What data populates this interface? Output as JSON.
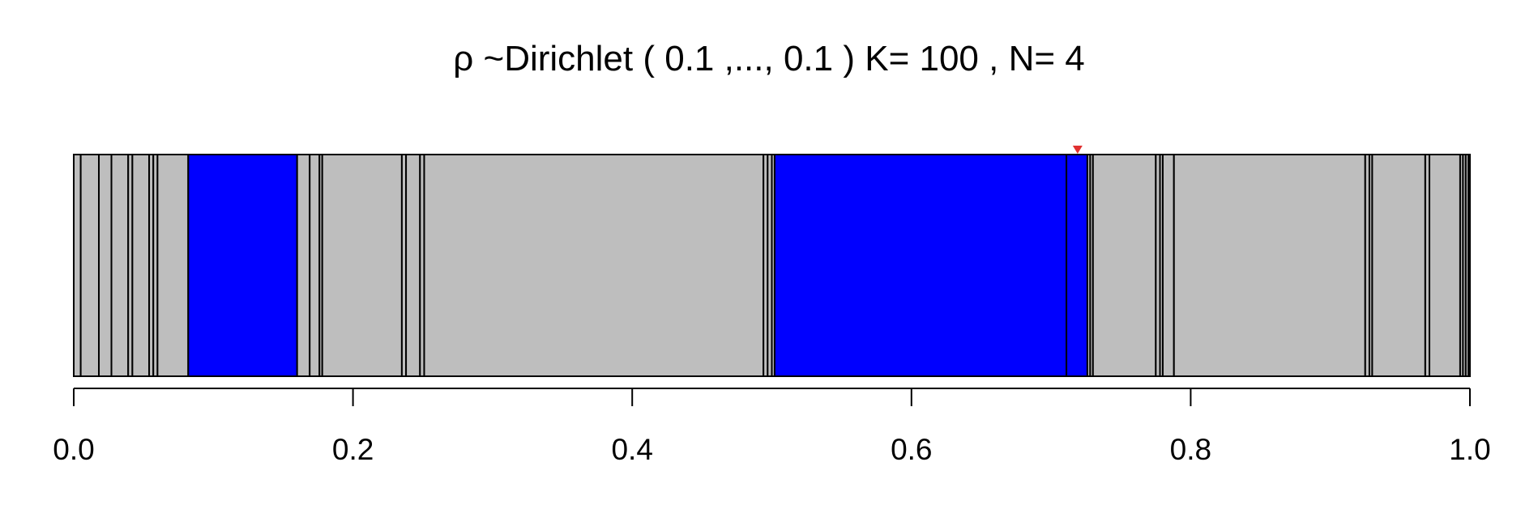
{
  "chart_data": {
    "type": "bar",
    "title": "ρ ~Dirichlet ( 0.1 ,..., 0.1 ) K= 100 , N= 4",
    "xlabel": "",
    "ylabel": "",
    "xlim": [
      0,
      1
    ],
    "ticks": [
      {
        "value": 0.0,
        "label": "0.0"
      },
      {
        "value": 0.2,
        "label": "0.2"
      },
      {
        "value": 0.4,
        "label": "0.4"
      },
      {
        "value": 0.6,
        "label": "0.6"
      },
      {
        "value": 0.8,
        "label": "0.8"
      },
      {
        "value": 1.0,
        "label": "1.0"
      }
    ],
    "colors": {
      "unselected": "#bebebe",
      "selected": "#0000ff",
      "border": "#000000",
      "marker": "#e03030"
    },
    "segments": [
      {
        "start": 0.0,
        "end": 0.005,
        "selected": false
      },
      {
        "start": 0.005,
        "end": 0.018,
        "selected": false
      },
      {
        "start": 0.018,
        "end": 0.027,
        "selected": false
      },
      {
        "start": 0.027,
        "end": 0.039,
        "selected": false
      },
      {
        "start": 0.039,
        "end": 0.042,
        "selected": false
      },
      {
        "start": 0.042,
        "end": 0.054,
        "selected": false
      },
      {
        "start": 0.054,
        "end": 0.057,
        "selected": false
      },
      {
        "start": 0.057,
        "end": 0.06,
        "selected": false
      },
      {
        "start": 0.06,
        "end": 0.082,
        "selected": false
      },
      {
        "start": 0.082,
        "end": 0.16,
        "selected": true
      },
      {
        "start": 0.16,
        "end": 0.169,
        "selected": false
      },
      {
        "start": 0.169,
        "end": 0.176,
        "selected": false
      },
      {
        "start": 0.176,
        "end": 0.178,
        "selected": false
      },
      {
        "start": 0.178,
        "end": 0.235,
        "selected": false
      },
      {
        "start": 0.235,
        "end": 0.238,
        "selected": false
      },
      {
        "start": 0.238,
        "end": 0.248,
        "selected": false
      },
      {
        "start": 0.248,
        "end": 0.251,
        "selected": false
      },
      {
        "start": 0.251,
        "end": 0.494,
        "selected": false
      },
      {
        "start": 0.494,
        "end": 0.497,
        "selected": false
      },
      {
        "start": 0.497,
        "end": 0.5,
        "selected": false
      },
      {
        "start": 0.5,
        "end": 0.502,
        "selected": false
      },
      {
        "start": 0.502,
        "end": 0.711,
        "selected": true
      },
      {
        "start": 0.711,
        "end": 0.726,
        "selected": true
      },
      {
        "start": 0.726,
        "end": 0.728,
        "selected": false
      },
      {
        "start": 0.728,
        "end": 0.73,
        "selected": false
      },
      {
        "start": 0.73,
        "end": 0.775,
        "selected": false
      },
      {
        "start": 0.775,
        "end": 0.778,
        "selected": false
      },
      {
        "start": 0.778,
        "end": 0.78,
        "selected": false
      },
      {
        "start": 0.78,
        "end": 0.788,
        "selected": false
      },
      {
        "start": 0.788,
        "end": 0.925,
        "selected": false
      },
      {
        "start": 0.925,
        "end": 0.928,
        "selected": false
      },
      {
        "start": 0.928,
        "end": 0.93,
        "selected": false
      },
      {
        "start": 0.93,
        "end": 0.968,
        "selected": false
      },
      {
        "start": 0.968,
        "end": 0.971,
        "selected": false
      },
      {
        "start": 0.971,
        "end": 0.993,
        "selected": false
      },
      {
        "start": 0.993,
        "end": 0.995,
        "selected": false
      },
      {
        "start": 0.995,
        "end": 0.997,
        "selected": false
      },
      {
        "start": 0.997,
        "end": 0.999,
        "selected": false
      },
      {
        "start": 0.999,
        "end": 1.0,
        "selected": false
      }
    ],
    "marker": {
      "x": 0.719
    }
  }
}
